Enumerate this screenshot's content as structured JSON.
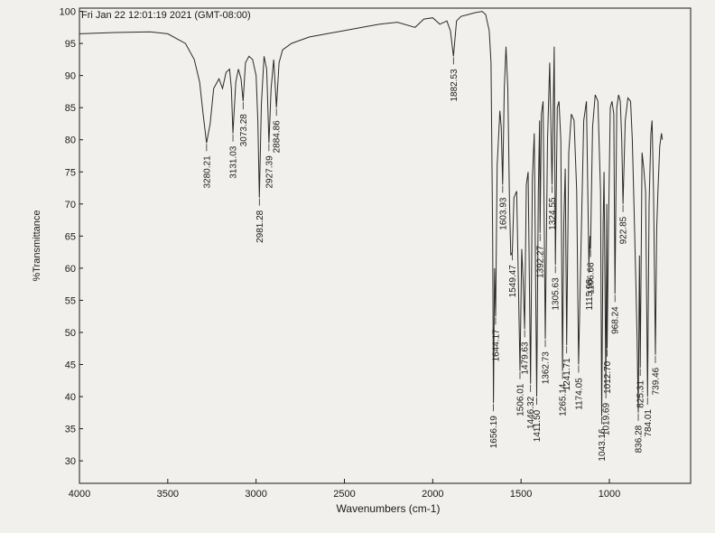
{
  "chart_data": {
    "type": "line",
    "header_text": "Fri Jan 22 12:01:19 2021 (GMT-08:00)",
    "xlabel": "Wavenumbers (cm-1)",
    "ylabel": "%Transmittance",
    "xlim": [
      4000,
      540
    ],
    "ylim": [
      26.5,
      100.5
    ],
    "x_ticks": [
      "4000",
      "3500",
      "3000",
      "2500",
      "2000",
      "1500",
      "1000"
    ],
    "y_ticks": [
      "100",
      "95",
      "90",
      "85",
      "80",
      "75",
      "70",
      "65",
      "60",
      "55",
      "50",
      "45",
      "40",
      "35",
      "30"
    ],
    "grid": false,
    "line_color": "#2b2b2b",
    "series": [
      {
        "x": [
          4000,
          3800,
          3600,
          3500,
          3400,
          3350,
          3320,
          3300,
          3280.21,
          3260,
          3240,
          3210,
          3190,
          3170,
          3150,
          3140,
          3131.03,
          3115,
          3100,
          3085,
          3073.28,
          3060,
          3040,
          3020,
          3000,
          2990,
          2981.28,
          2970,
          2955,
          2940,
          2927.39,
          2915,
          2900,
          2884.86,
          2870,
          2850,
          2800,
          2700,
          2600,
          2500,
          2400,
          2300,
          2200,
          2100,
          2050,
          2000,
          1960,
          1920,
          1900,
          1882.53,
          1865,
          1840,
          1800,
          1760,
          1720,
          1700,
          1680,
          1670,
          1661,
          1656.19,
          1650,
          1644.17,
          1635,
          1620,
          1612,
          1603.93,
          1595,
          1585,
          1575,
          1565,
          1558,
          1549.47,
          1540,
          1525,
          1515,
          1506.01,
          1496,
          1488,
          1479.63,
          1470,
          1460,
          1446.32,
          1436,
          1425,
          1411.5,
          1402,
          1395,
          1392.27,
          1385,
          1375,
          1362.73,
          1350,
          1338,
          1324.55,
          1312,
          1305.63,
          1295,
          1285,
          1275,
          1265.14,
          1258,
          1250,
          1241.71,
          1230,
          1215,
          1200,
          1185,
          1174.05,
          1160,
          1145,
          1130,
          1115.98,
          1110,
          1106.66,
          1095,
          1080,
          1065,
          1050,
          1043.16,
          1035,
          1030,
          1019.69,
          1015,
          1012.7,
          1004,
          995,
          985,
          975,
          968.24,
          958,
          948,
          938,
          930,
          922.85,
          910,
          895,
          880,
          870,
          860,
          850,
          843,
          836.28,
          830,
          825.31,
          815,
          805,
          795,
          784.01,
          775,
          765,
          758,
          750,
          739.46,
          732,
          725,
          715,
          705,
          700
        ],
        "values": [
          96.5,
          96.7,
          96.8,
          96.5,
          95.0,
          92.5,
          89.0,
          84.0,
          79.5,
          82.5,
          88.0,
          89.5,
          88.0,
          90.5,
          91.0,
          88.0,
          81.0,
          89.0,
          91.0,
          89.5,
          86.0,
          92.0,
          93.0,
          92.5,
          90.0,
          83.0,
          71.0,
          85.5,
          93.0,
          91.0,
          79.5,
          88.0,
          92.5,
          85.0,
          92.0,
          94.0,
          95.0,
          96.0,
          96.5,
          97.0,
          97.5,
          98.0,
          98.3,
          97.5,
          98.8,
          99.0,
          98.0,
          98.5,
          97.0,
          93.0,
          98.5,
          99.2,
          99.5,
          99.8,
          100.0,
          99.5,
          97.0,
          92.0,
          65.0,
          39.0,
          60.0,
          52.5,
          76.0,
          84.5,
          82.0,
          73.0,
          88.0,
          94.5,
          88.0,
          70.0,
          62.0,
          62.5,
          71.0,
          72.0,
          58.0,
          44.0,
          63.0,
          58.0,
          50.5,
          73.0,
          75.0,
          42.0,
          74.0,
          81.0,
          40.0,
          72.0,
          83.0,
          65.5,
          84.0,
          86.0,
          49.0,
          80.0,
          92.0,
          73.0,
          94.5,
          60.5,
          85.0,
          86.0,
          80.0,
          44.0,
          67.0,
          75.5,
          48.0,
          78.0,
          84.0,
          83.0,
          72.0,
          45.0,
          64.0,
          83.0,
          86.0,
          60.5,
          65.0,
          63.0,
          82.0,
          87.0,
          86.0,
          72.0,
          37.0,
          67.0,
          75.0,
          41.0,
          70.0,
          47.5,
          68.0,
          85.0,
          86.0,
          84.0,
          56.0,
          85.0,
          87.0,
          86.0,
          80.0,
          70.0,
          83.0,
          86.5,
          86.0,
          80.0,
          69.0,
          58.0,
          49.0,
          37.5,
          62.0,
          44.5,
          78.0,
          75.5,
          72.0,
          40.0,
          70.0,
          81.0,
          83.0,
          72.0,
          46.5,
          66.0,
          72.0,
          79.0,
          81.0,
          80.0
        ]
      }
    ],
    "peak_labels": [
      {
        "x": 3280.21,
        "y": 79.5,
        "text": "3280.21"
      },
      {
        "x": 3131.03,
        "y": 81.0,
        "text": "3131.03"
      },
      {
        "x": 3073.28,
        "y": 86.0,
        "text": "3073.28"
      },
      {
        "x": 2981.28,
        "y": 71.0,
        "text": "2981.28"
      },
      {
        "x": 2927.39,
        "y": 79.5,
        "text": "2927.39"
      },
      {
        "x": 2884.86,
        "y": 85.0,
        "text": "2884.86"
      },
      {
        "x": 1882.53,
        "y": 93.0,
        "text": "1882.53"
      },
      {
        "x": 1656.19,
        "y": 39.0,
        "text": "1656.19"
      },
      {
        "x": 1644.17,
        "y": 52.5,
        "text": "1644.17"
      },
      {
        "x": 1603.93,
        "y": 73.0,
        "text": "1603.93"
      },
      {
        "x": 1549.47,
        "y": 62.5,
        "text": "1549.47"
      },
      {
        "x": 1506.01,
        "y": 44.0,
        "text": "1506.01"
      },
      {
        "x": 1479.63,
        "y": 50.5,
        "text": "1479.63"
      },
      {
        "x": 1446.32,
        "y": 42.0,
        "text": "1446.32"
      },
      {
        "x": 1411.5,
        "y": 40.0,
        "text": "1411.50"
      },
      {
        "x": 1392.27,
        "y": 65.5,
        "text": "1392.27"
      },
      {
        "x": 1362.73,
        "y": 49.0,
        "text": "1362.73"
      },
      {
        "x": 1324.55,
        "y": 73.0,
        "text": "1324.55"
      },
      {
        "x": 1305.63,
        "y": 60.5,
        "text": "1305.63"
      },
      {
        "x": 1265.14,
        "y": 44.0,
        "text": "1265.14"
      },
      {
        "x": 1241.71,
        "y": 48.0,
        "text": "1241.71"
      },
      {
        "x": 1174.05,
        "y": 45.0,
        "text": "1174.05"
      },
      {
        "x": 1115.98,
        "y": 60.5,
        "text": "1115.98"
      },
      {
        "x": 1106.66,
        "y": 63.0,
        "text": "1106.66"
      },
      {
        "x": 1043.16,
        "y": 37.0,
        "text": "1043.16"
      },
      {
        "x": 1019.69,
        "y": 41.0,
        "text": "1019.69"
      },
      {
        "x": 1012.7,
        "y": 47.5,
        "text": "1012.70"
      },
      {
        "x": 968.24,
        "y": 56.0,
        "text": "968.24"
      },
      {
        "x": 922.85,
        "y": 70.0,
        "text": "922.85"
      },
      {
        "x": 836.28,
        "y": 37.5,
        "text": "836.28"
      },
      {
        "x": 825.31,
        "y": 44.5,
        "text": "825.31"
      },
      {
        "x": 784.01,
        "y": 40.0,
        "text": "784.01"
      },
      {
        "x": 739.46,
        "y": 46.5,
        "text": "739.46"
      }
    ]
  }
}
